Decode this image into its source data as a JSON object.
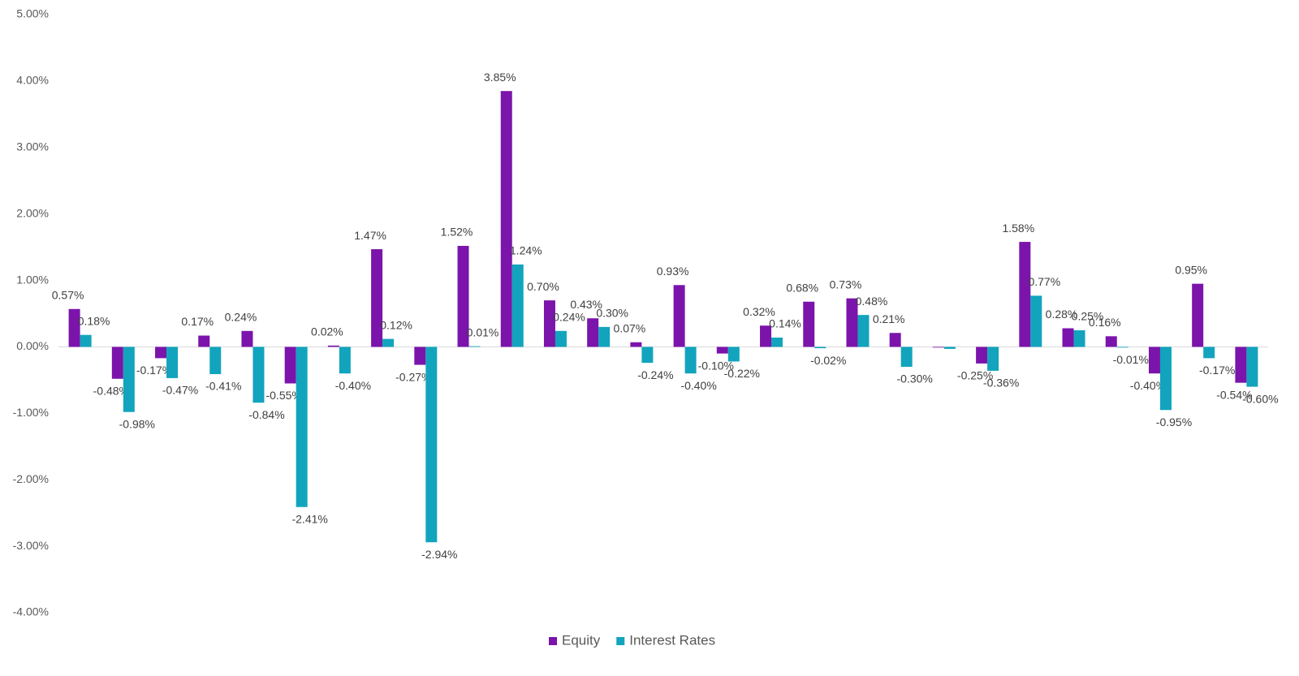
{
  "chart_data": {
    "type": "bar",
    "categories": [
      null,
      null,
      null,
      null,
      null,
      null,
      null,
      null,
      null,
      null,
      null,
      null,
      null,
      null,
      null,
      null,
      null,
      null,
      null,
      null,
      null,
      null,
      null,
      null,
      null,
      null,
      null,
      null
    ],
    "series": [
      {
        "name": "Equity",
        "color": "#7b14ab",
        "values": [
          0.57,
          -0.48,
          -0.17,
          0.17,
          0.24,
          -0.55,
          0.02,
          1.47,
          -0.27,
          1.52,
          3.85,
          0.7,
          0.43,
          0.07,
          0.93,
          -0.1,
          0.32,
          0.68,
          0.73,
          0.21,
          -0.01,
          -0.25,
          1.58,
          0.28,
          0.16,
          -0.4,
          0.95,
          -0.54
        ],
        "value_labels": [
          "0.57%",
          "-0.48%",
          "-0.17%",
          "0.17%",
          "0.24%",
          "-0.55%",
          "0.02%",
          "1.47%",
          "-0.27%",
          "1.52%",
          "3.85%",
          "0.70%",
          "0.43%",
          "0.07%",
          "0.93%",
          "-0.10%",
          "0.32%",
          "0.68%",
          "0.73%",
          "0.21%",
          null,
          "-0.25%",
          "1.58%",
          "0.28%",
          "0.16%",
          "-0.40%",
          "0.95%",
          "-0.54%"
        ]
      },
      {
        "name": "Interest Rates",
        "color": "#12a4bd",
        "values": [
          0.18,
          -0.98,
          -0.47,
          -0.41,
          -0.84,
          -2.41,
          -0.4,
          0.12,
          -2.94,
          0.01,
          1.24,
          0.24,
          0.3,
          -0.24,
          -0.4,
          -0.22,
          0.14,
          -0.02,
          0.48,
          -0.3,
          -0.03,
          -0.36,
          0.77,
          0.25,
          -0.01,
          -0.95,
          -0.17,
          -0.6
        ],
        "value_labels": [
          "0.18%",
          "-0.98%",
          "-0.47%",
          "-0.41%",
          "-0.84%",
          "-2.41%",
          "-0.40%",
          "0.12%",
          "-2.94%",
          "0.01%",
          "1.24%",
          "0.24%",
          "0.30%",
          "-0.24%",
          "-0.40%",
          "-0.22%",
          "0.14%",
          "-0.02%",
          "0.48%",
          "-0.30%",
          null,
          "-0.36%",
          "0.77%",
          "0.25%",
          "-0.01%",
          "-0.95%",
          "-0.17%",
          "-0.60%"
        ]
      }
    ],
    "ylim": [
      -4,
      5
    ],
    "yticks": [
      {
        "value": -4,
        "label": "-4.00%"
      },
      {
        "value": -3,
        "label": "-3.00%"
      },
      {
        "value": -2,
        "label": "-2.00%"
      },
      {
        "value": -1,
        "label": "-1.00%"
      },
      {
        "value": 0,
        "label": "0.00%"
      },
      {
        "value": 1,
        "label": "1.00%"
      },
      {
        "value": 2,
        "label": "2.00%"
      },
      {
        "value": 3,
        "label": "3.00%"
      },
      {
        "value": 4,
        "label": "4.00%"
      },
      {
        "value": 5,
        "label": "5.00%"
      }
    ],
    "legend": "bottom"
  }
}
